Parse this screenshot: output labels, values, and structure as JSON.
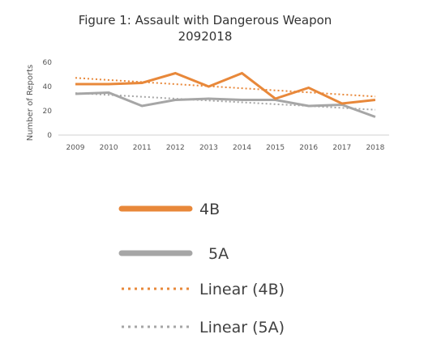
{
  "chart_data": {
    "type": "line",
    "title_line1": "Figure 1: Assault with Dangerous Weapon",
    "title_line2": "2092018",
    "xlabel": "",
    "ylabel": "Number of Reports",
    "ylim": [
      0,
      60
    ],
    "yticks": [
      "0",
      "20",
      "40",
      "60"
    ],
    "categories": [
      "2009",
      "2010",
      "2011",
      "2012",
      "2013",
      "2014",
      "2015",
      "2016",
      "2017",
      "2018"
    ],
    "grid": false,
    "legend_position": "bottom",
    "series": [
      {
        "name": "4B",
        "color": "#E8883A",
        "style": "solid",
        "values": [
          42,
          42,
          43,
          51,
          40,
          51,
          30,
          39,
          26,
          29
        ]
      },
      {
        "name": "5A",
        "color": "#A6A6A6",
        "style": "solid",
        "values": [
          34,
          35,
          24,
          29,
          30,
          29,
          29,
          24,
          25,
          15
        ]
      },
      {
        "name": "Linear (4B)",
        "color": "#E8883A",
        "style": "dotted",
        "values": [
          47.1,
          45.4,
          43.7,
          42.0,
          40.3,
          38.6,
          36.9,
          35.2,
          33.5,
          31.8
        ]
      },
      {
        "name": "Linear (5A)",
        "color": "#A6A6A6",
        "style": "dotted",
        "values": [
          34.6,
          33.1,
          31.6,
          30.0,
          28.5,
          27.0,
          25.5,
          24.0,
          22.4,
          20.9
        ]
      }
    ]
  }
}
